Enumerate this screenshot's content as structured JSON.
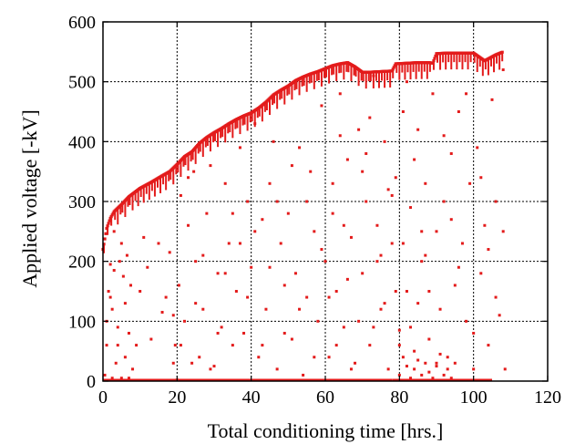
{
  "chart_data": {
    "type": "scatter",
    "xlabel": "Total conditioning time [hrs.]",
    "ylabel": "Applied voltage [-kV]",
    "xlim": [
      0,
      120
    ],
    "ylim": [
      0,
      600
    ],
    "xticks": [
      0,
      20,
      40,
      60,
      80,
      100,
      120
    ],
    "yticks": [
      0,
      100,
      200,
      300,
      400,
      500,
      600
    ],
    "xtick_labels": [
      "0",
      "20",
      "40",
      "60",
      "80",
      "100",
      "120"
    ],
    "ytick_labels": [
      "0",
      "100",
      "200",
      "300",
      "400",
      "500",
      "600"
    ],
    "grid": true,
    "marker_color": "#e31b1b",
    "series": [
      {
        "envelope": [
          [
            0,
            220
          ],
          [
            1,
            255
          ],
          [
            2,
            272
          ],
          [
            3,
            283
          ],
          [
            5,
            295
          ],
          [
            7,
            308
          ],
          [
            10,
            322
          ],
          [
            13,
            332
          ],
          [
            16,
            343
          ],
          [
            18,
            350
          ],
          [
            20,
            362
          ],
          [
            22,
            375
          ],
          [
            24,
            383
          ],
          [
            26,
            397
          ],
          [
            28,
            407
          ],
          [
            30,
            415
          ],
          [
            32,
            422
          ],
          [
            34,
            430
          ],
          [
            36,
            437
          ],
          [
            38,
            443
          ],
          [
            40,
            448
          ],
          [
            42,
            456
          ],
          [
            44,
            466
          ],
          [
            46,
            478
          ],
          [
            48,
            486
          ],
          [
            50,
            493
          ],
          [
            52,
            502
          ],
          [
            54,
            508
          ],
          [
            56,
            513
          ],
          [
            58,
            517
          ],
          [
            60,
            522
          ],
          [
            62,
            527
          ],
          [
            64,
            530
          ],
          [
            66,
            532
          ],
          [
            68,
            525
          ],
          [
            70,
            516
          ],
          [
            72,
            516
          ],
          [
            75,
            517
          ],
          [
            78,
            518
          ],
          [
            79,
            530
          ],
          [
            82,
            531
          ],
          [
            85,
            532
          ],
          [
            88,
            532
          ],
          [
            89,
            531
          ],
          [
            90,
            547
          ],
          [
            93,
            548
          ],
          [
            96,
            548
          ],
          [
            100,
            548
          ],
          [
            103,
            535
          ],
          [
            106,
            545
          ],
          [
            108,
            550
          ]
        ],
        "points": [
          [
            0.5,
            10
          ],
          [
            1,
            60
          ],
          [
            1.5,
            150
          ],
          [
            2,
            195
          ],
          [
            2.5,
            120
          ],
          [
            3,
            185
          ],
          [
            3.5,
            30
          ],
          [
            4,
            90
          ],
          [
            4.5,
            200
          ],
          [
            5,
            5
          ],
          [
            5.5,
            175
          ],
          [
            6,
            40
          ],
          [
            6.5,
            210
          ],
          [
            7,
            80
          ],
          [
            7.5,
            160
          ],
          [
            8,
            20
          ],
          [
            3,
            250
          ],
          [
            5,
            230
          ],
          [
            2,
            140
          ],
          [
            1,
            100
          ],
          [
            6,
            130
          ],
          [
            4,
            60
          ],
          [
            7,
            5
          ],
          [
            2.5,
            5
          ],
          [
            11,
            240
          ],
          [
            16,
            115
          ],
          [
            18,
            215
          ],
          [
            19,
            110
          ],
          [
            19.5,
            60
          ],
          [
            20,
            2
          ],
          [
            20.5,
            160
          ],
          [
            21,
            310
          ],
          [
            22,
            100
          ],
          [
            23,
            260
          ],
          [
            24,
            30
          ],
          [
            24.5,
            350
          ],
          [
            25,
            200
          ],
          [
            26,
            40
          ],
          [
            27,
            120
          ],
          [
            28,
            280
          ],
          [
            29,
            360
          ],
          [
            30,
            25
          ],
          [
            31,
            180
          ],
          [
            32,
            90
          ],
          [
            33,
            330
          ],
          [
            34,
            230
          ],
          [
            35,
            60
          ],
          [
            36,
            150
          ],
          [
            37,
            390
          ],
          [
            38,
            80
          ],
          [
            39,
            300
          ],
          [
            40,
            190
          ],
          [
            41,
            430
          ],
          [
            42,
            40
          ],
          [
            43,
            270
          ],
          [
            44,
            120
          ],
          [
            45,
            330
          ],
          [
            46,
            400
          ],
          [
            47,
            20
          ],
          [
            48,
            230
          ],
          [
            49,
            160
          ],
          [
            50,
            280
          ],
          [
            51,
            70
          ],
          [
            52,
            180
          ],
          [
            53,
            390
          ],
          [
            54,
            10
          ],
          [
            55,
            140
          ],
          [
            56,
            350
          ],
          [
            57,
            250
          ],
          [
            58,
            100
          ],
          [
            59,
            460
          ],
          [
            60,
            200
          ],
          [
            61,
            40
          ],
          [
            62,
            330
          ],
          [
            63,
            150
          ],
          [
            64,
            480
          ],
          [
            65,
            90
          ],
          [
            66,
            370
          ],
          [
            67,
            240
          ],
          [
            68,
            30
          ],
          [
            69,
            420
          ],
          [
            70,
            180
          ],
          [
            71,
            300
          ],
          [
            72,
            60
          ],
          [
            73,
            510
          ],
          [
            74,
            260
          ],
          [
            75,
            120
          ],
          [
            76,
            400
          ],
          [
            77,
            20
          ],
          [
            78,
            230
          ],
          [
            79,
            340
          ],
          [
            80,
            85
          ],
          [
            81,
            450
          ],
          [
            82,
            150
          ],
          [
            83,
            290
          ],
          [
            84,
            50
          ],
          [
            85,
            420
          ],
          [
            86,
            200
          ],
          [
            87,
            330
          ],
          [
            88,
            70
          ],
          [
            89,
            480
          ],
          [
            90,
            250
          ],
          [
            91,
            120
          ],
          [
            92,
            300
          ],
          [
            93,
            40
          ],
          [
            94,
            380
          ],
          [
            95,
            160
          ],
          [
            96,
            450
          ],
          [
            97,
            230
          ],
          [
            98,
            100
          ],
          [
            99,
            330
          ],
          [
            100,
            20
          ],
          [
            101,
            390
          ],
          [
            102,
            180
          ],
          [
            103,
            260
          ],
          [
            104,
            60
          ],
          [
            105,
            470
          ],
          [
            106,
            300
          ],
          [
            107,
            110
          ],
          [
            108,
            250
          ],
          [
            108.5,
            20
          ],
          [
            108,
            520
          ],
          [
            62,
            280
          ],
          [
            64,
            410
          ],
          [
            66,
            170
          ],
          [
            70,
            350
          ],
          [
            72,
            440
          ],
          [
            74,
            200
          ],
          [
            76,
            130
          ],
          [
            78,
            310
          ],
          [
            80,
            60
          ],
          [
            82,
            500
          ],
          [
            84,
            370
          ],
          [
            86,
            250
          ],
          [
            88,
            150
          ],
          [
            90,
            30
          ],
          [
            92,
            410
          ],
          [
            94,
            270
          ],
          [
            96,
            190
          ],
          [
            98,
            480
          ],
          [
            100,
            80
          ],
          [
            102,
            340
          ],
          [
            104,
            220
          ],
          [
            106,
            140
          ],
          [
            85,
            130
          ],
          [
            87,
            210
          ],
          [
            83,
            90
          ],
          [
            81,
            230
          ],
          [
            79,
            150
          ],
          [
            77,
            320
          ],
          [
            75,
            210
          ],
          [
            73,
            90
          ],
          [
            71,
            380
          ],
          [
            69,
            100
          ],
          [
            67,
            20
          ],
          [
            65,
            260
          ],
          [
            63,
            60
          ],
          [
            61,
            140
          ],
          [
            59,
            220
          ],
          [
            57,
            40
          ],
          [
            55,
            300
          ],
          [
            53,
            120
          ],
          [
            51,
            360
          ],
          [
            49,
            80
          ],
          [
            47,
            300
          ],
          [
            45,
            190
          ],
          [
            43,
            60
          ],
          [
            41,
            250
          ],
          [
            39,
            140
          ],
          [
            37,
            230
          ],
          [
            35,
            280
          ],
          [
            33,
            180
          ],
          [
            31,
            80
          ],
          [
            29,
            20
          ],
          [
            27,
            210
          ],
          [
            25,
            130
          ],
          [
            23,
            340
          ],
          [
            21,
            60
          ],
          [
            19,
            30
          ],
          [
            17,
            140
          ],
          [
            15,
            230
          ],
          [
            13,
            70
          ],
          [
            12,
            190
          ],
          [
            10,
            150
          ],
          [
            9,
            60
          ],
          [
            80,
            10
          ],
          [
            81,
            40
          ],
          [
            82,
            25
          ],
          [
            83,
            5
          ],
          [
            84,
            20
          ],
          [
            85,
            35
          ],
          [
            86,
            10
          ],
          [
            87,
            30
          ],
          [
            88,
            15
          ],
          [
            89,
            5
          ],
          [
            90,
            25
          ],
          [
            91,
            45
          ],
          [
            92,
            10
          ],
          [
            93,
            20
          ],
          [
            94,
            5
          ],
          [
            95,
            30
          ]
        ],
        "baseline_segments": [
          [
            0,
            20
          ],
          [
            20,
            60
          ],
          [
            60,
            78
          ],
          [
            78,
            100
          ],
          [
            100,
            105
          ]
        ]
      }
    ]
  }
}
